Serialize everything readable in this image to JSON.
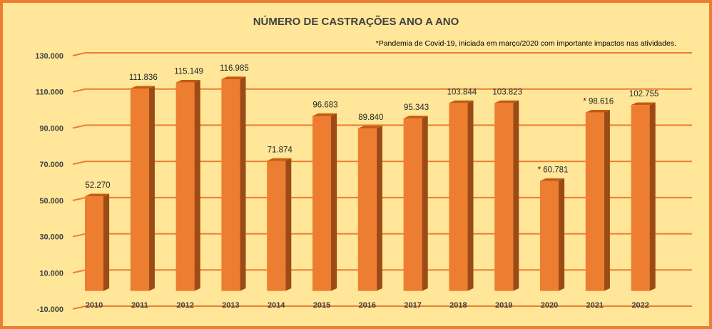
{
  "chart_data": {
    "type": "bar",
    "title": "NÚMERO DE CASTRAÇÕES ANO A ANO",
    "annotation": "*Pandemia de Covid-19, iniciada em março/2020 com importante impactos nas atividades.",
    "categories": [
      "2010",
      "2011",
      "2012",
      "2013",
      "2014",
      "2015",
      "2016",
      "2017",
      "2018",
      "2019",
      "2020",
      "2021",
      "2022"
    ],
    "values": [
      52270,
      111836,
      115149,
      116985,
      71874,
      96683,
      89840,
      95343,
      103844,
      103823,
      60781,
      98616,
      102755
    ],
    "data_labels": [
      "52.270",
      "111.836",
      "115.149",
      "116.985",
      "71.874",
      "96.683",
      "89.840",
      "95.343",
      "103.844",
      "103.823",
      "* 60.781",
      "* 98.616",
      "102.755"
    ],
    "y_ticks": [
      -10000,
      10000,
      30000,
      50000,
      70000,
      90000,
      110000,
      130000
    ],
    "y_tick_labels": [
      "-10.000",
      "10.000",
      "30.000",
      "50.000",
      "70.000",
      "90.000",
      "110.000",
      "130.000"
    ],
    "ylim": [
      -10000,
      130000
    ],
    "xlabel": "",
    "ylabel": "",
    "colors": {
      "border": "#ED7D31",
      "background": "#FFE699",
      "bar_front": "#ED7D31",
      "bar_side": "#9C4A16",
      "bar_top": "#C55A11",
      "gridline": "#ED7D31"
    }
  }
}
